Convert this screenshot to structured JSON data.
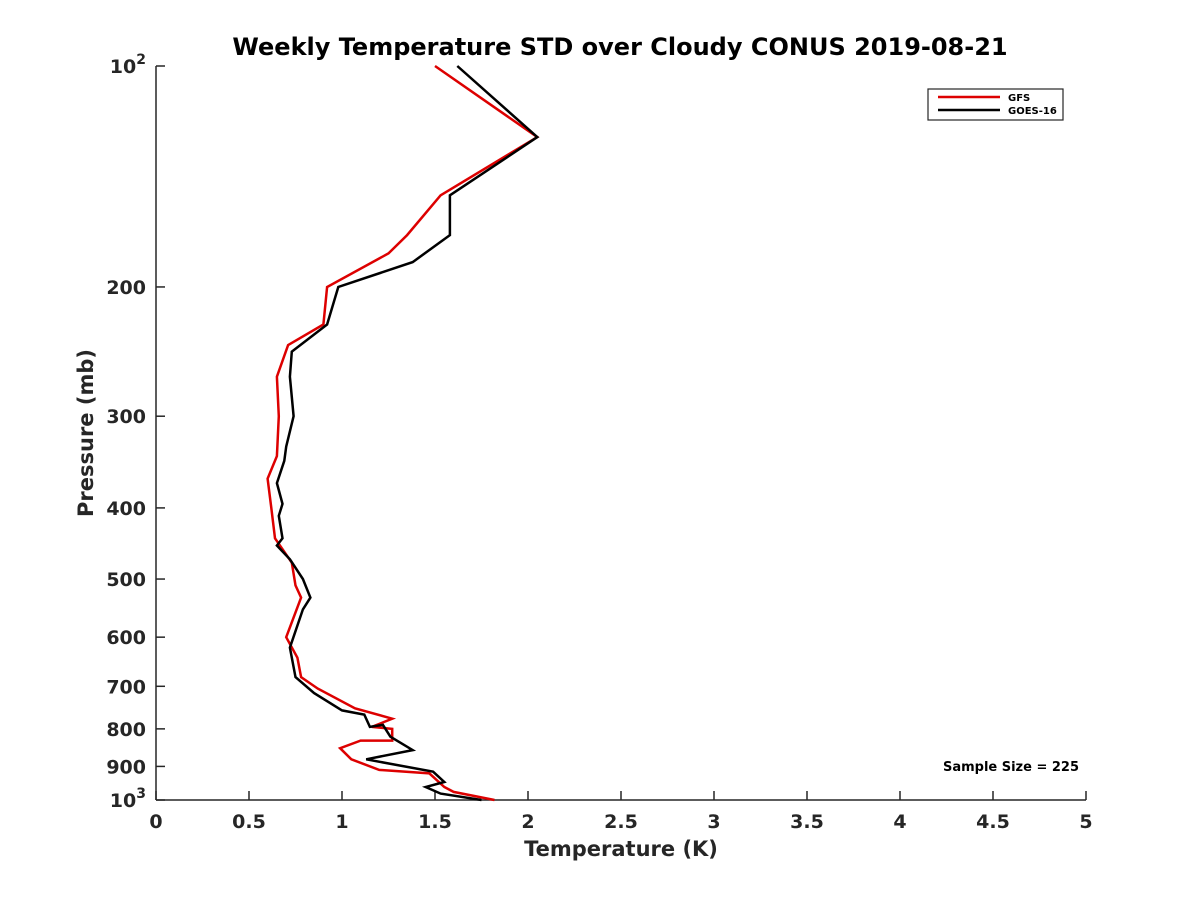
{
  "chart_data": {
    "type": "line",
    "title": "Weekly Temperature STD over Cloudy CONUS 2019-08-21",
    "xlabel": "Temperature (K)",
    "ylabel": "Pressure (mb)",
    "xlim": [
      0,
      5
    ],
    "ylim": [
      100,
      1000
    ],
    "y_scale": "log",
    "y_reversed": true,
    "x_ticks": [
      "0",
      "0.5",
      "1",
      "1.5",
      "2",
      "2.5",
      "3",
      "3.5",
      "4",
      "4.5",
      "5"
    ],
    "x_tick_values": [
      0,
      0.5,
      1,
      1.5,
      2,
      2.5,
      3,
      3.5,
      4,
      4.5,
      5
    ],
    "y_ticks": [
      {
        "value": 100,
        "base": "10",
        "exp": "2"
      },
      {
        "value": 200,
        "label": "200"
      },
      {
        "value": 300,
        "label": "300"
      },
      {
        "value": 400,
        "label": "400"
      },
      {
        "value": 500,
        "label": "500"
      },
      {
        "value": 600,
        "label": "600"
      },
      {
        "value": 700,
        "label": "700"
      },
      {
        "value": 800,
        "label": "800"
      },
      {
        "value": 900,
        "label": "900"
      },
      {
        "value": 1000,
        "base": "10",
        "exp": "3"
      }
    ],
    "grid": false,
    "legend_position": "top-right",
    "annotation": "Sample Size = 225",
    "series": [
      {
        "name": "GFS",
        "color": "#dd0000",
        "points": [
          {
            "x": 1.5,
            "p": 100
          },
          {
            "x": 2.05,
            "p": 125
          },
          {
            "x": 1.53,
            "p": 150
          },
          {
            "x": 1.35,
            "p": 170
          },
          {
            "x": 1.25,
            "p": 180
          },
          {
            "x": 0.92,
            "p": 200
          },
          {
            "x": 0.9,
            "p": 225
          },
          {
            "x": 0.71,
            "p": 240
          },
          {
            "x": 0.65,
            "p": 265
          },
          {
            "x": 0.66,
            "p": 300
          },
          {
            "x": 0.65,
            "p": 340
          },
          {
            "x": 0.6,
            "p": 365
          },
          {
            "x": 0.62,
            "p": 400
          },
          {
            "x": 0.64,
            "p": 440
          },
          {
            "x": 0.73,
            "p": 475
          },
          {
            "x": 0.75,
            "p": 510
          },
          {
            "x": 0.78,
            "p": 530
          },
          {
            "x": 0.7,
            "p": 600
          },
          {
            "x": 0.76,
            "p": 640
          },
          {
            "x": 0.78,
            "p": 680
          },
          {
            "x": 0.87,
            "p": 705
          },
          {
            "x": 1.07,
            "p": 750
          },
          {
            "x": 1.27,
            "p": 775
          },
          {
            "x": 1.16,
            "p": 795
          },
          {
            "x": 1.27,
            "p": 800
          },
          {
            "x": 1.27,
            "p": 830
          },
          {
            "x": 1.1,
            "p": 830
          },
          {
            "x": 0.99,
            "p": 850
          },
          {
            "x": 1.05,
            "p": 880
          },
          {
            "x": 1.2,
            "p": 910
          },
          {
            "x": 1.47,
            "p": 920
          },
          {
            "x": 1.55,
            "p": 960
          },
          {
            "x": 1.6,
            "p": 975
          },
          {
            "x": 1.82,
            "p": 1000
          }
        ]
      },
      {
        "name": "GOES-16",
        "color": "#000000",
        "points": [
          {
            "x": 1.62,
            "p": 100
          },
          {
            "x": 2.05,
            "p": 125
          },
          {
            "x": 1.58,
            "p": 150
          },
          {
            "x": 1.58,
            "p": 170
          },
          {
            "x": 1.38,
            "p": 185
          },
          {
            "x": 0.98,
            "p": 200
          },
          {
            "x": 0.92,
            "p": 225
          },
          {
            "x": 0.73,
            "p": 245
          },
          {
            "x": 0.72,
            "p": 265
          },
          {
            "x": 0.74,
            "p": 300
          },
          {
            "x": 0.7,
            "p": 330
          },
          {
            "x": 0.69,
            "p": 345
          },
          {
            "x": 0.65,
            "p": 370
          },
          {
            "x": 0.68,
            "p": 395
          },
          {
            "x": 0.66,
            "p": 410
          },
          {
            "x": 0.68,
            "p": 440
          },
          {
            "x": 0.65,
            "p": 450
          },
          {
            "x": 0.72,
            "p": 470
          },
          {
            "x": 0.79,
            "p": 500
          },
          {
            "x": 0.83,
            "p": 530
          },
          {
            "x": 0.79,
            "p": 550
          },
          {
            "x": 0.72,
            "p": 620
          },
          {
            "x": 0.75,
            "p": 680
          },
          {
            "x": 0.85,
            "p": 715
          },
          {
            "x": 1.0,
            "p": 755
          },
          {
            "x": 1.12,
            "p": 765
          },
          {
            "x": 1.15,
            "p": 795
          },
          {
            "x": 1.22,
            "p": 790
          },
          {
            "x": 1.26,
            "p": 820
          },
          {
            "x": 1.38,
            "p": 855
          },
          {
            "x": 1.13,
            "p": 880
          },
          {
            "x": 1.49,
            "p": 915
          },
          {
            "x": 1.55,
            "p": 945
          },
          {
            "x": 1.45,
            "p": 960
          },
          {
            "x": 1.53,
            "p": 980
          },
          {
            "x": 1.75,
            "p": 1000
          }
        ]
      }
    ]
  }
}
